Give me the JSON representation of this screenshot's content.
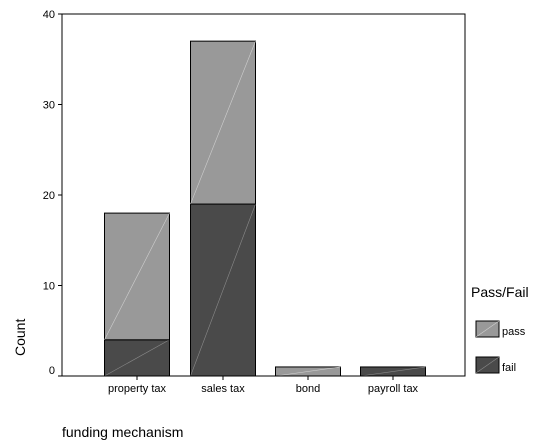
{
  "chart_data": {
    "type": "bar",
    "stacked": true,
    "categories": [
      "property tax",
      "sales tax",
      "bond",
      "payroll tax"
    ],
    "series": [
      {
        "name": "fail",
        "values": [
          4,
          19,
          0,
          1
        ]
      },
      {
        "name": "pass",
        "values": [
          14,
          18,
          1,
          0
        ]
      }
    ],
    "xlabel": "funding mechanism",
    "ylabel": "Count",
    "ylim": [
      0,
      40
    ],
    "yticks": [
      "0",
      "10",
      "20",
      "30",
      "40"
    ],
    "grid": false,
    "legend": {
      "title": "Pass/Fail",
      "placement": "right",
      "items": [
        {
          "label": "pass",
          "color": "#999999"
        },
        {
          "label": "fail",
          "color": "#4a4a4a"
        }
      ]
    },
    "colors": {
      "pass": "#999999",
      "fail": "#4a4a4a"
    }
  }
}
